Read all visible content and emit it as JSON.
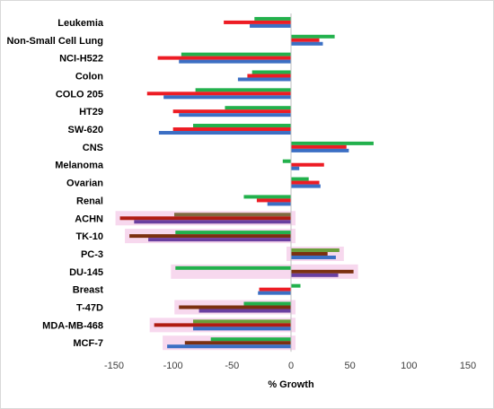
{
  "chart_data": {
    "type": "bar",
    "orientation": "horizontal",
    "xlabel": "% Growth",
    "xlim": [
      -150,
      150
    ],
    "xticks": [
      -150,
      -100,
      -50,
      0,
      50,
      100,
      150
    ],
    "grid": false,
    "categories": [
      "Leukemia",
      "Non-Small Cell Lung",
      "NCI-H522",
      "Colon",
      "COLO 205",
      "HT29",
      "SW-620",
      "CNS",
      "Melanoma",
      "Ovarian",
      "Renal",
      "ACHN",
      "TK-10",
      "PC-3",
      "DU-145",
      "Breast",
      "T-47D",
      "MDA-MB-468",
      "MCF-7"
    ],
    "groups": [
      {
        "category": "Leukemia",
        "bars": [
          {
            "value": -31,
            "color": "#22b14c"
          },
          {
            "value": -57,
            "color": "#ed1c24"
          },
          {
            "value": -35,
            "color": "#3b6fc4"
          }
        ]
      },
      {
        "category": "Non-Small Cell Lung",
        "bars": [
          {
            "value": 37,
            "color": "#22b14c"
          },
          {
            "value": 24,
            "color": "#ed1c24"
          },
          {
            "value": 27,
            "color": "#3b6fc4"
          }
        ]
      },
      {
        "category": "NCI-H522",
        "bars": [
          {
            "value": -93,
            "color": "#22b14c"
          },
          {
            "value": -113,
            "color": "#ed1c24"
          },
          {
            "value": -95,
            "color": "#3b6fc4"
          }
        ]
      },
      {
        "category": "Colon",
        "bars": [
          {
            "value": -33,
            "color": "#22b14c"
          },
          {
            "value": -37,
            "color": "#ed1c24"
          },
          {
            "value": -45,
            "color": "#3b6fc4"
          }
        ]
      },
      {
        "category": "COLO 205",
        "bars": [
          {
            "value": -81,
            "color": "#22b14c"
          },
          {
            "value": -122,
            "color": "#ed1c24"
          },
          {
            "value": -108,
            "color": "#3b6fc4"
          }
        ]
      },
      {
        "category": "HT29",
        "bars": [
          {
            "value": -56,
            "color": "#22b14c"
          },
          {
            "value": -100,
            "color": "#ed1c24"
          },
          {
            "value": -95,
            "color": "#3b6fc4"
          }
        ]
      },
      {
        "category": "SW-620",
        "bars": [
          {
            "value": -83,
            "color": "#22b14c"
          },
          {
            "value": -100,
            "color": "#ed1c24"
          },
          {
            "value": -112,
            "color": "#3b6fc4"
          }
        ]
      },
      {
        "category": "CNS",
        "bars": [
          {
            "value": 70,
            "color": "#22b14c"
          },
          {
            "value": 47,
            "color": "#ed1c24"
          },
          {
            "value": 49,
            "color": "#3b6fc4"
          }
        ]
      },
      {
        "category": "Melanoma",
        "bars": [
          {
            "value": -7,
            "color": "#22b14c"
          },
          {
            "value": 28,
            "color": "#ed1c24"
          },
          {
            "value": 7,
            "color": "#3b6fc4"
          }
        ]
      },
      {
        "category": "Ovarian",
        "bars": [
          {
            "value": 15,
            "color": "#22b14c"
          },
          {
            "value": 24,
            "color": "#ed1c24"
          },
          {
            "value": 25,
            "color": "#3b6fc4"
          }
        ]
      },
      {
        "category": "Renal",
        "bars": [
          {
            "value": -40,
            "color": "#22b14c"
          },
          {
            "value": -29,
            "color": "#ed1c24"
          },
          {
            "value": -20,
            "color": "#3b6fc4"
          }
        ]
      },
      {
        "category": "ACHN",
        "highlight": true,
        "bars": [
          {
            "value": -99,
            "color": "#7f6a40"
          },
          {
            "value": -145,
            "color": "#b01c12"
          },
          {
            "value": -133,
            "color": "#6a3fa0"
          }
        ]
      },
      {
        "category": "TK-10",
        "highlight": true,
        "bars": [
          {
            "value": -98,
            "color": "#22b14c"
          },
          {
            "value": -137,
            "color": "#7b3010"
          },
          {
            "value": -121,
            "color": "#6a3fa0"
          }
        ]
      },
      {
        "category": "PC-3",
        "highlight": true,
        "bars": [
          {
            "value": 41,
            "color": "#6a9e3a"
          },
          {
            "value": 31,
            "color": "#7b3010"
          },
          {
            "value": 38,
            "color": "#3b6fc4"
          }
        ]
      },
      {
        "category": "DU-145",
        "highlight": true,
        "bars": [
          {
            "value": -98,
            "color": "#22b14c"
          },
          {
            "value": 53,
            "color": "#7b3010"
          },
          {
            "value": 40,
            "color": "#6a3fa0"
          }
        ]
      },
      {
        "category": "Breast",
        "bars": [
          {
            "value": 8,
            "color": "#22b14c"
          },
          {
            "value": -27,
            "color": "#ed1c24"
          },
          {
            "value": -28,
            "color": "#3b6fc4"
          }
        ]
      },
      {
        "category": "T-47D",
        "highlight": true,
        "bars": [
          {
            "value": -40,
            "color": "#22b14c"
          },
          {
            "value": -95,
            "color": "#7b3010"
          },
          {
            "value": -78,
            "color": "#6a3fa0"
          }
        ]
      },
      {
        "category": "MDA-MB-468",
        "highlight": true,
        "bars": [
          {
            "value": -83,
            "color": "#6a9e3a"
          },
          {
            "value": -116,
            "color": "#b01c12"
          },
          {
            "value": -83,
            "color": "#3b6fc4"
          }
        ]
      },
      {
        "category": "MCF-7",
        "highlight": true,
        "bars": [
          {
            "value": -68,
            "color": "#22b14c"
          },
          {
            "value": -90,
            "color": "#7b3010"
          },
          {
            "value": -105,
            "color": "#3b6fc4"
          }
        ]
      }
    ],
    "highlight_color": "#f7d8ee"
  }
}
